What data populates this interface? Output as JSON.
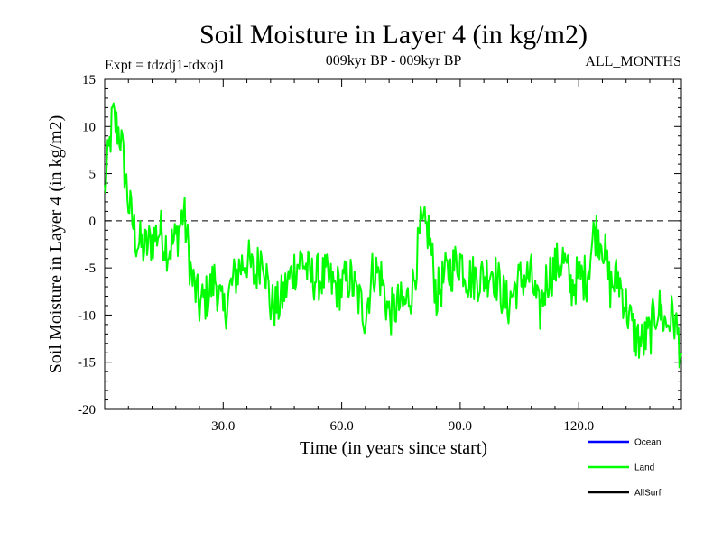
{
  "chart_data": {
    "type": "line",
    "title": "Soil Moisture in Layer 4 (in kg/m2)",
    "subtitle_left": "Expt = tdzdj1-tdxoj1",
    "subtitle_center": "009kyr BP - 009kyr BP",
    "subtitle_right": "ALL_MONTHS",
    "xlabel": "Time (in years since start)",
    "ylabel": "Soil Moisture in Layer 4 (in kg/m2)",
    "xlim": [
      0,
      146
    ],
    "ylim": [
      -20,
      15
    ],
    "xticks": [
      30,
      60,
      90,
      120
    ],
    "xtick_labels": [
      "30.0",
      "60.0",
      "90.0",
      "120.0"
    ],
    "yticks": [
      -20,
      -15,
      -10,
      -5,
      0,
      5,
      10,
      15
    ],
    "ytick_labels": [
      "-20",
      "-15",
      "-10",
      "-5",
      "0",
      "5",
      "10",
      "15"
    ],
    "reference_line": 0,
    "legend_position": "bottom-right",
    "legend": [
      {
        "name": "Ocean",
        "color": "#0000ff"
      },
      {
        "name": "Land",
        "color": "#00ff00"
      },
      {
        "name": "AllSurf",
        "color": "#000000"
      }
    ],
    "series": [
      {
        "name": "Land",
        "color": "#00ff00",
        "x": [
          0,
          2,
          4,
          6,
          8,
          10,
          12,
          14,
          16,
          18,
          20,
          22,
          24,
          26,
          28,
          30,
          32,
          34,
          36,
          38,
          40,
          42,
          44,
          46,
          48,
          50,
          52,
          54,
          56,
          58,
          60,
          62,
          64,
          66,
          68,
          70,
          72,
          74,
          76,
          78,
          80,
          82,
          84,
          86,
          88,
          90,
          92,
          94,
          96,
          98,
          100,
          102,
          104,
          106,
          108,
          110,
          112,
          114,
          116,
          118,
          120,
          122,
          124,
          126,
          128,
          130,
          132,
          134,
          136,
          138,
          140,
          142,
          144,
          146
        ],
        "values": [
          3,
          11,
          9,
          2,
          -2,
          -3,
          -2,
          -1,
          -3,
          -2,
          1,
          -6,
          -9,
          -8,
          -6,
          -10,
          -7,
          -5,
          -4,
          -6,
          -3,
          -9,
          -9,
          -7,
          -5,
          -4,
          -6,
          -6,
          -6,
          -7,
          -7,
          -6,
          -8,
          -10,
          -5,
          -6,
          -10,
          -9,
          -9,
          -7,
          -1,
          -1,
          -8,
          -6,
          -5,
          -4,
          -6,
          -6,
          -6,
          -5,
          -7,
          -9,
          -7,
          -6,
          -6,
          -10,
          -6,
          -5,
          -4,
          -7,
          -6,
          -6,
          -1,
          -2,
          -7,
          -6,
          -9,
          -12,
          -13,
          -12,
          -9,
          -11,
          -10,
          -14
        ]
      }
    ]
  }
}
